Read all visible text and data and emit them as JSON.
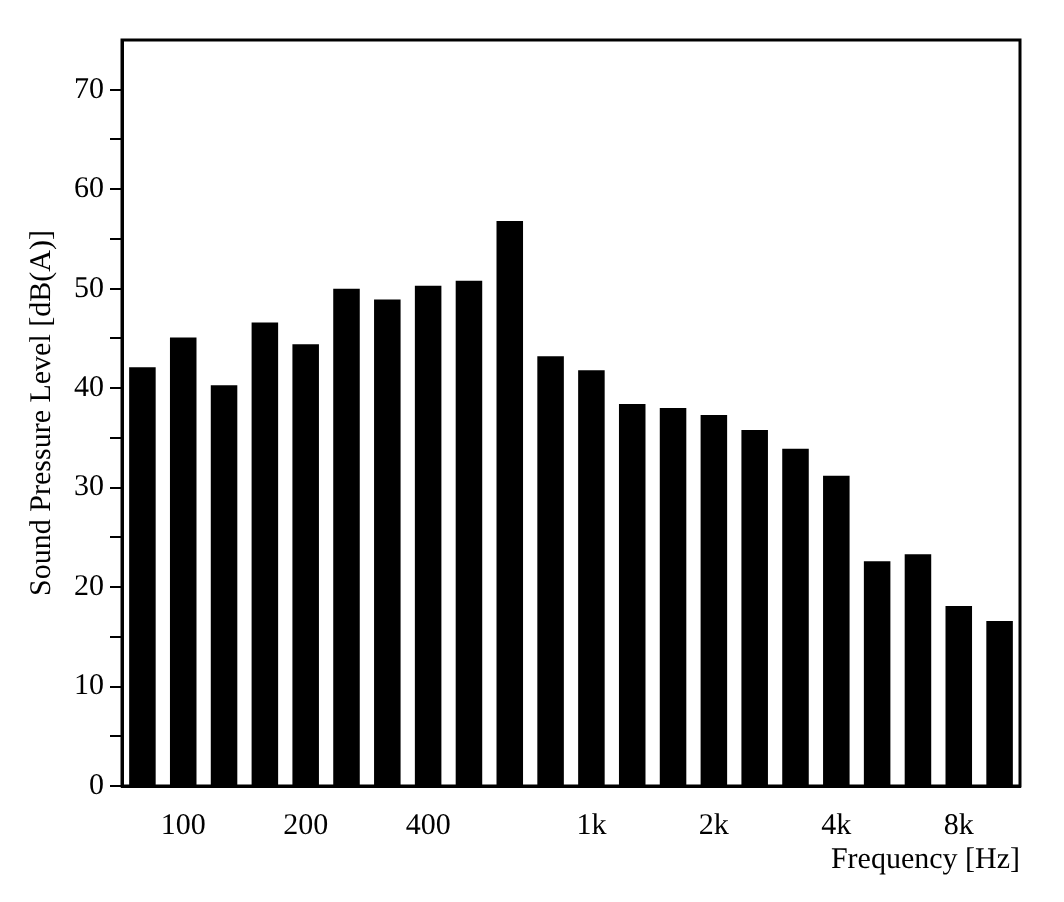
{
  "chart_data": {
    "type": "bar",
    "xlabel": "Frequency [Hz]",
    "ylabel": "Sound Pressure Level [dB(A)]",
    "categories": [
      null,
      "100",
      null,
      null,
      "200",
      null,
      null,
      "400",
      null,
      null,
      null,
      "1k",
      null,
      null,
      "2k",
      null,
      null,
      "4k",
      null,
      null,
      "8k",
      null
    ],
    "values": [
      42.1,
      45.1,
      40.3,
      46.6,
      44.4,
      50.0,
      48.9,
      50.3,
      50.8,
      56.8,
      43.2,
      41.8,
      38.4,
      38.0,
      37.3,
      35.8,
      33.9,
      31.2,
      22.6,
      23.3,
      18.1,
      16.6
    ],
    "color": "#000000",
    "ylim": [
      0,
      75
    ],
    "yticks": [
      0,
      {
        "value": 5,
        "label": null
      },
      10,
      {
        "value": 15,
        "label": null
      },
      20,
      {
        "value": 25,
        "label": null
      },
      30,
      {
        "value": 35,
        "label": null
      },
      40,
      {
        "value": 45,
        "label": null
      },
      50,
      {
        "value": 55,
        "label": null
      },
      60,
      {
        "value": 65,
        "label": null
      },
      70
    ],
    "grid": false,
    "legend": false
  }
}
